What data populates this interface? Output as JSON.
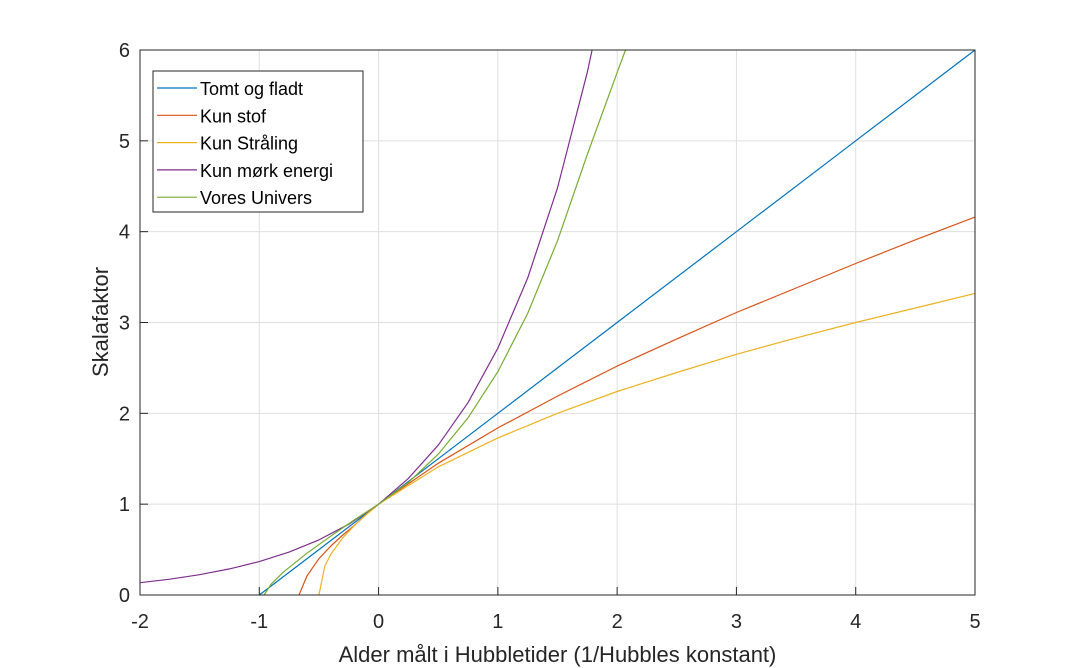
{
  "chart_data": {
    "type": "line",
    "title": "",
    "xlabel": "Alder målt i Hubbletider (1/Hubbles konstant)",
    "ylabel": "Skalafaktor",
    "xlim": [
      -2,
      5
    ],
    "ylim": [
      0,
      6
    ],
    "xticks": [
      "-2",
      "-1",
      "0",
      "1",
      "2",
      "3",
      "4",
      "5"
    ],
    "yticks": [
      "0",
      "1",
      "2",
      "3",
      "4",
      "5",
      "6"
    ],
    "grid": true,
    "legend_position": "top-left",
    "series": [
      {
        "name": "Tomt og fladt",
        "color": "#0072BD",
        "x": [
          -1,
          0,
          1,
          2,
          3,
          4,
          5
        ],
        "y": [
          0,
          1,
          2,
          3,
          4,
          5,
          6
        ]
      },
      {
        "name": "Kun stof",
        "color": "#D95319",
        "x": [
          -0.667,
          -0.6,
          -0.5,
          -0.4,
          -0.3,
          -0.2,
          -0.1,
          0,
          0.5,
          1,
          1.5,
          2,
          2.5,
          3,
          3.5,
          4,
          4.5,
          5
        ],
        "y": [
          0,
          0.21,
          0.4,
          0.54,
          0.66,
          0.77,
          0.89,
          1,
          1.45,
          1.84,
          2.19,
          2.52,
          2.82,
          3.11,
          3.38,
          3.65,
          3.91,
          4.16
        ]
      },
      {
        "name": "Kun Stråling",
        "color": "#EDB120",
        "x": [
          -0.5,
          -0.45,
          -0.4,
          -0.3,
          -0.2,
          -0.1,
          0,
          0.5,
          1,
          1.5,
          2,
          2.5,
          3,
          3.5,
          4,
          4.5,
          5
        ],
        "y": [
          0,
          0.32,
          0.45,
          0.63,
          0.77,
          0.89,
          1,
          1.41,
          1.73,
          2.0,
          2.24,
          2.45,
          2.65,
          2.83,
          3.0,
          3.16,
          3.32
        ]
      },
      {
        "name": "Kun mørk energi",
        "color": "#7E2F8E",
        "x": [
          -2,
          -1.75,
          -1.5,
          -1.25,
          -1,
          -0.75,
          -0.5,
          -0.25,
          0,
          0.25,
          0.5,
          0.75,
          1,
          1.25,
          1.5,
          1.75,
          1.79
        ],
        "y": [
          0.135,
          0.174,
          0.223,
          0.287,
          0.368,
          0.472,
          0.607,
          0.779,
          1,
          1.284,
          1.649,
          2.117,
          2.718,
          3.49,
          4.482,
          5.755,
          6.0
        ]
      },
      {
        "name": "Vores Univers",
        "color": "#77AC30",
        "x": [
          -0.96,
          -0.9,
          -0.8,
          -0.6,
          -0.4,
          -0.2,
          0,
          0.25,
          0.5,
          0.75,
          1,
          1.25,
          1.5,
          1.75,
          2,
          2.07
        ],
        "y": [
          0,
          0.12,
          0.25,
          0.46,
          0.65,
          0.83,
          1,
          1.24,
          1.55,
          1.95,
          2.46,
          3.1,
          3.9,
          4.85,
          5.75,
          6.0
        ]
      }
    ]
  }
}
